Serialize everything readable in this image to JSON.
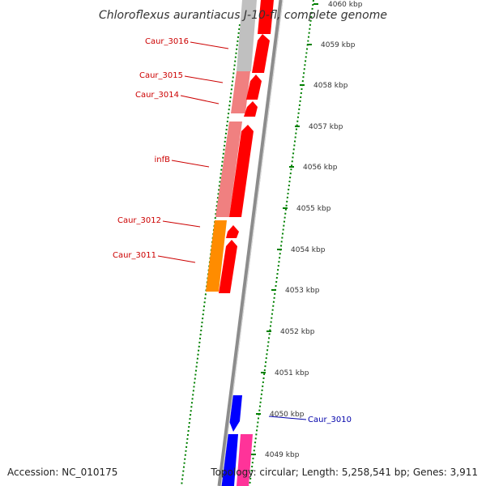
{
  "title": "Chloroflexus aurantiacus J-10-fl, complete genome",
  "footer": {
    "accession": "Accession: NC_010175",
    "summary": "Topology: circular; Length: 5,258,541 bp; Genes: 3,911"
  },
  "ticks": [
    {
      "label": "4060 kbp"
    },
    {
      "label": "4059 kbp"
    },
    {
      "label": "4058 kbp"
    },
    {
      "label": "4057 kbp"
    },
    {
      "label": "4056 kbp"
    },
    {
      "label": "4055 kbp"
    },
    {
      "label": "4054 kbp"
    },
    {
      "label": "4053 kbp"
    },
    {
      "label": "4052 kbp"
    },
    {
      "label": "4051 kbp"
    },
    {
      "label": "4050 kbp"
    },
    {
      "label": "4049 kbp"
    }
  ],
  "genes": [
    {
      "name": "Caur_3016",
      "color": "#cc0000"
    },
    {
      "name": "Caur_3015",
      "color": "#cc0000"
    },
    {
      "name": "Caur_3014",
      "color": "#cc0000"
    },
    {
      "name": "infB",
      "color": "#cc0000"
    },
    {
      "name": "Caur_3012",
      "color": "#cc0000"
    },
    {
      "name": "Caur_3011",
      "color": "#cc0000"
    },
    {
      "name": "Caur_3010",
      "color": "#0000aa"
    }
  ],
  "colors": {
    "forward_cds": "#ff0000",
    "reverse_cds": "#0000ff",
    "rna_pink": "#ff3399",
    "cog_pink": "#f08080",
    "cog_grey": "#c0c0c0",
    "cog_orange": "#ff8c00",
    "backbone": "#8c8c8c",
    "gc_dots": "#008000"
  }
}
